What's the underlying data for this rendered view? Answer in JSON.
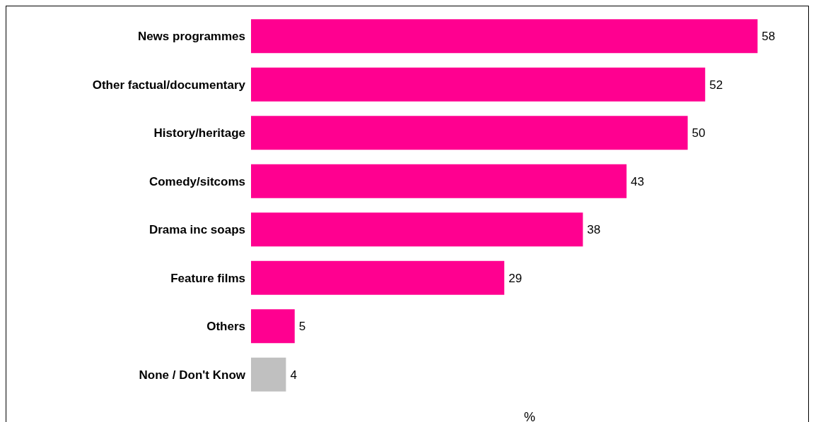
{
  "chart_data": {
    "type": "bar",
    "orientation": "horizontal",
    "xlabel": "%",
    "categories": [
      "News programmes",
      "Other factual/documentary",
      "History/heritage",
      "Comedy/sitcoms",
      "Drama inc soaps",
      "Feature films",
      "Others",
      "None / Don't Know"
    ],
    "values": [
      58,
      52,
      50,
      43,
      38,
      29,
      5,
      4
    ],
    "colors": [
      "#ff0090",
      "#ff0090",
      "#ff0090",
      "#ff0090",
      "#ff0090",
      "#ff0090",
      "#ff0090",
      "#c0c0c0"
    ],
    "data_labels": true
  }
}
